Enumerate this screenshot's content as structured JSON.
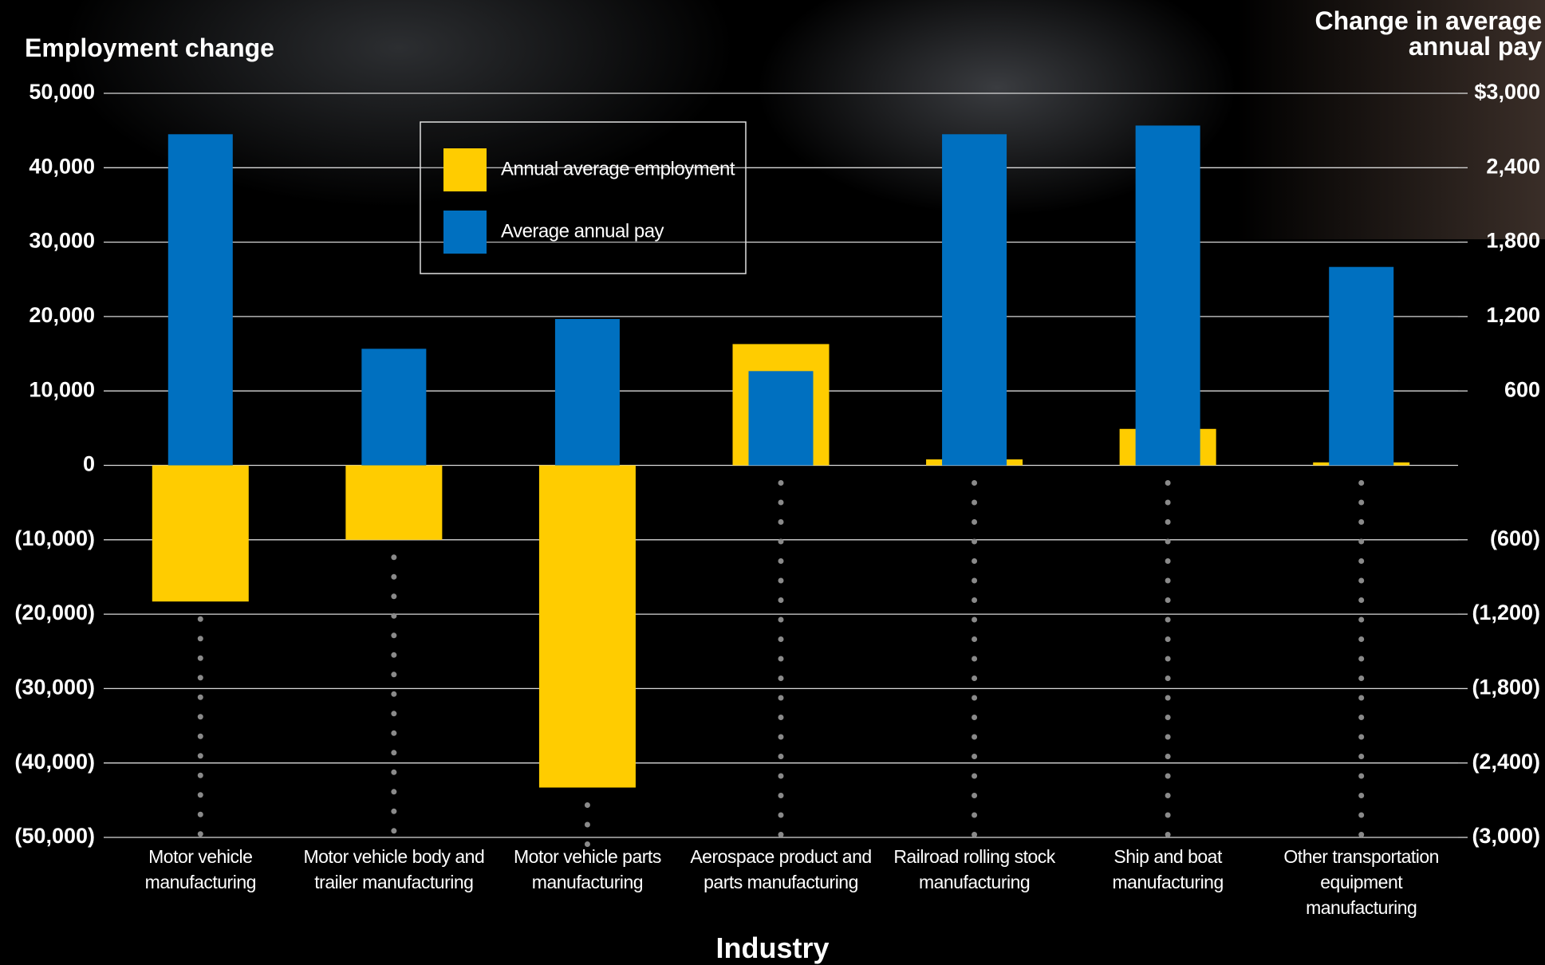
{
  "chart_data": {
    "type": "bar",
    "y_label": "Employment change",
    "y2_label": "Change in average annual pay",
    "x_label": "Industry",
    "categories": [
      "Motor vehicle manufacturing",
      "Motor vehicle body and trailer manufacturing",
      "Motor vehicle parts manufacturing",
      "Aerospace product and parts manufacturing",
      "Railroad rolling stock manufacturing",
      "Ship and boat manufacturing",
      "Other transportation equipment manufacturing"
    ],
    "series": [
      {
        "name": "Annual average employment",
        "color": "#ffcc00",
        "axis": "y",
        "values": [
          -18300,
          -10000,
          -43300,
          16300,
          800,
          4900,
          400
        ]
      },
      {
        "name": "Average annual pay",
        "color": "#0070c0",
        "axis": "y2",
        "values": [
          2670,
          940,
          1180,
          760,
          2670,
          2740,
          1600
        ]
      }
    ],
    "ylim": [
      -50000,
      50000
    ],
    "yticks": [
      {
        "value": 50000,
        "label": "50,000"
      },
      {
        "value": 40000,
        "label": "40,000"
      },
      {
        "value": 30000,
        "label": "30,000"
      },
      {
        "value": 20000,
        "label": "20,000"
      },
      {
        "value": 10000,
        "label": "10,000"
      },
      0,
      {
        "value": -10000,
        "label": "(10,000)"
      },
      {
        "value": -20000,
        "label": "(20,000)"
      },
      {
        "value": -30000,
        "label": "(30,000)"
      },
      {
        "value": -40000,
        "label": "(40,000)"
      },
      {
        "value": -50000,
        "label": "(50,000)"
      }
    ],
    "y2lim": [
      -3000,
      3000
    ],
    "y2ticks": [
      {
        "value": 3000,
        "label": "$3,000"
      },
      {
        "value": 2400,
        "label": "2,400"
      },
      {
        "value": 1800,
        "label": "1,800"
      },
      {
        "value": 1200,
        "label": "1,200"
      },
      600,
      {
        "value": -600,
        "label": "(600)"
      },
      {
        "value": -1200,
        "label": "(1,200)"
      },
      {
        "value": -1800,
        "label": "(1,800)"
      },
      {
        "value": -2400,
        "label": "(2,400)"
      },
      {
        "value": -3000,
        "label": "(3,000)"
      }
    ],
    "grid": true,
    "legend": "top"
  }
}
